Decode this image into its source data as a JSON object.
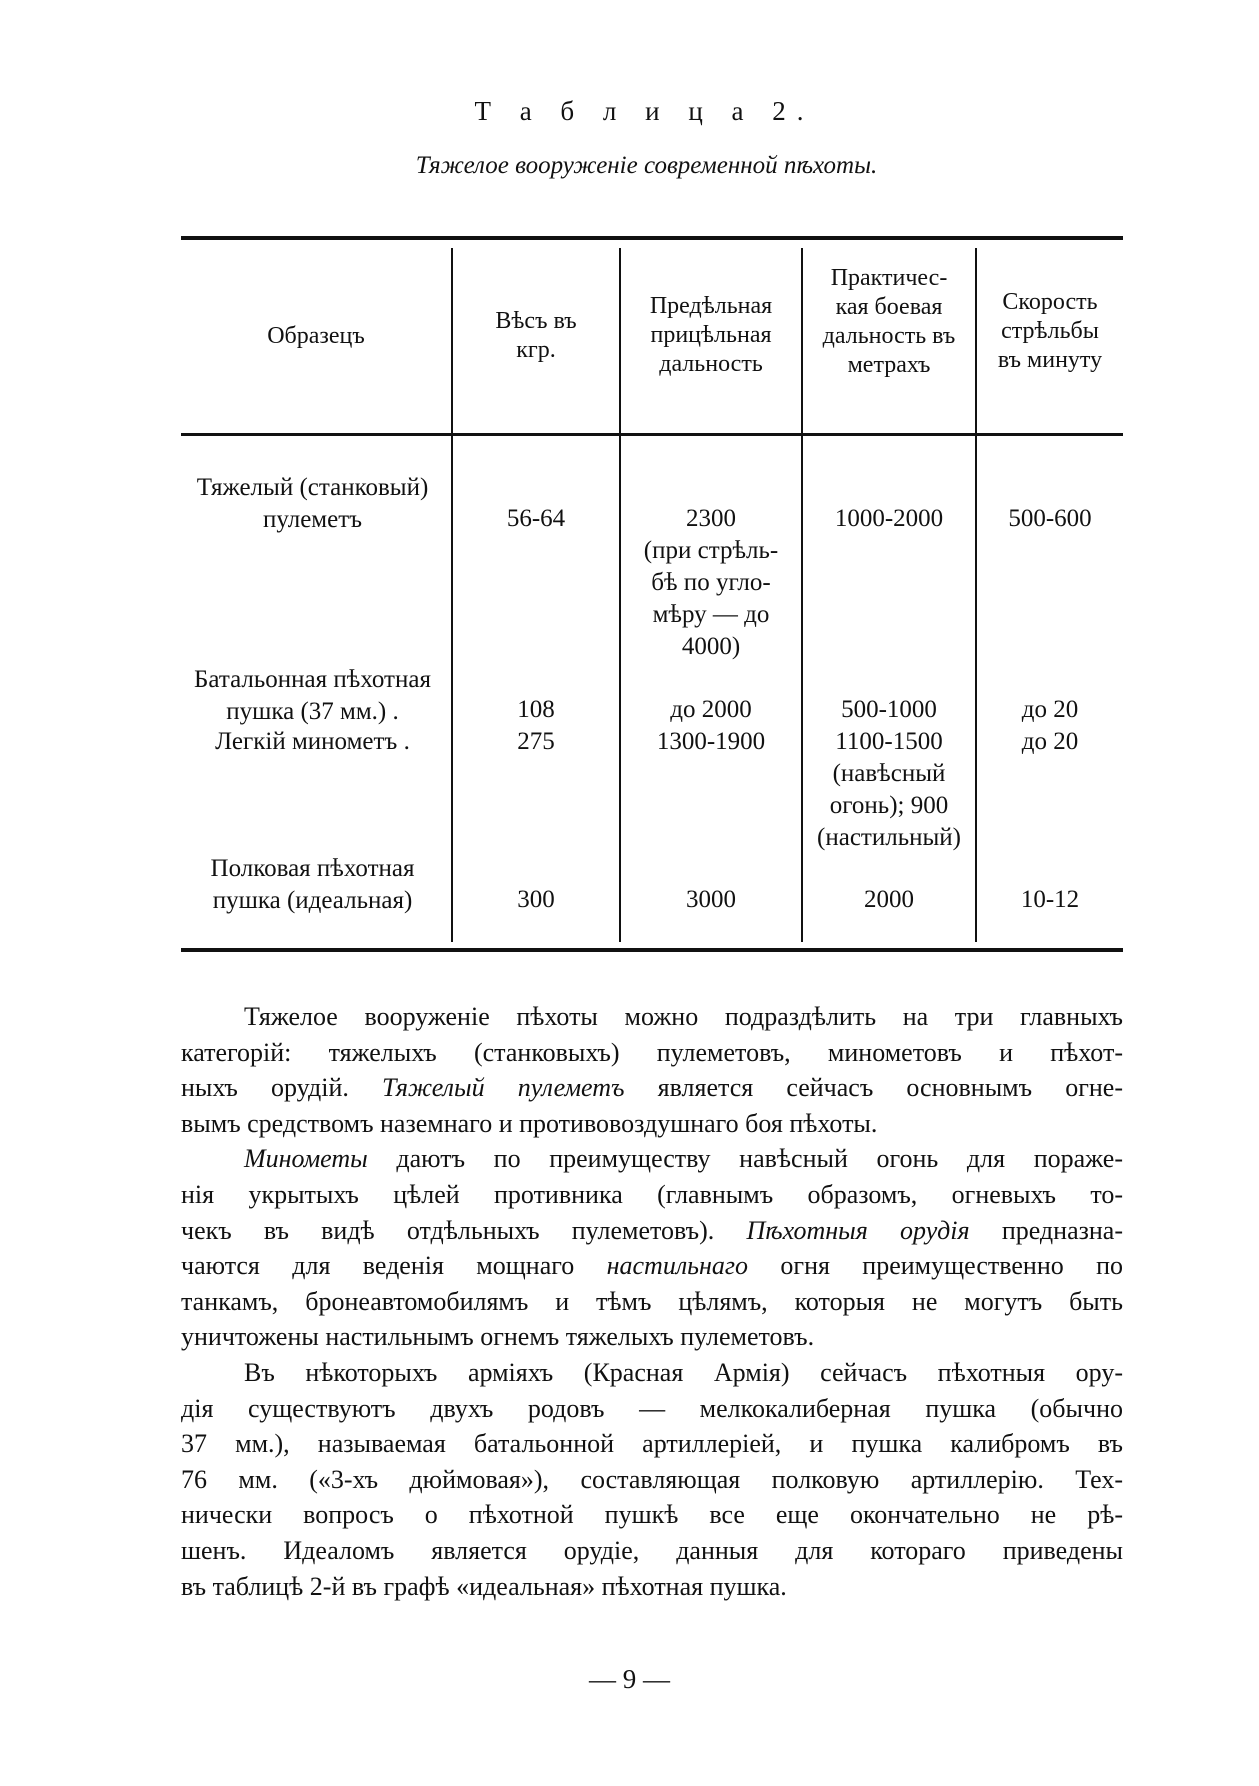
{
  "table_label": "Т а б л и ц а  2.",
  "table_caption": "Тяжелое вооруженіе современной пѣхоты.",
  "table": {
    "headers": [
      "Образецъ",
      "Вѣсъ въ\nкгр.",
      "Предѣльная\nприцѣльная\nдальность",
      "Практичес-\nкая боевая\nдальность въ\nметрахъ",
      "Скорость\nстрѣльбы\nвъ минуту"
    ],
    "rows": [
      {
        "name": "Тяжелый (станковый)\nпулеметъ",
        "weight": "56-64",
        "max_range": "2300\n(при стрѣль-\nбѣ по угло-\nмѣру — до\n4000)",
        "combat_range": "1000-2000",
        "rate": "500-600"
      },
      {
        "name": "Батальонная пѣхотная\nпушка (37 мм.) .",
        "weight": "108",
        "max_range": "до 2000",
        "combat_range": "500-1000",
        "rate": "до 20"
      },
      {
        "name": "Легкій минометъ   .",
        "weight": "275",
        "max_range": "1300-1900",
        "combat_range": "1100-1500\n(навѣсный\nогонь); 900\n(настильный)",
        "rate": "до 20"
      },
      {
        "name": "Полковая пѣхотная\nпушка (идеальная)",
        "weight": "300",
        "max_range": "3000",
        "combat_range": "2000",
        "rate": "10-12"
      }
    ]
  },
  "body_lines": [
    {
      "indent": true,
      "parts": [
        {
          "t": "Тяжелое вооруженіе пѣхоты можно подраздѣлить на три главныхъ"
        }
      ]
    },
    {
      "parts": [
        {
          "t": "категорій: тяжелыхъ (станковыхъ) пулеметовъ, минометовъ и пѣхот-"
        }
      ]
    },
    {
      "parts": [
        {
          "t": "ныхъ орудій. "
        },
        {
          "t": "Тяжелый пулеметъ",
          "i": true
        },
        {
          "t": " является сейчасъ основнымъ огне-"
        }
      ]
    },
    {
      "last": true,
      "parts": [
        {
          "t": "вымъ средствомъ наземнаго и противовоздушнаго боя пѣхоты."
        }
      ]
    },
    {
      "indent": true,
      "parts": [
        {
          "t": "Минометы",
          "i": true
        },
        {
          "t": " даютъ по преимуществу навѣсный огонь для пораже-"
        }
      ]
    },
    {
      "parts": [
        {
          "t": "нія укрытыхъ цѣлей противника (главнымъ образомъ, огневыхъ то-"
        }
      ]
    },
    {
      "parts": [
        {
          "t": "чекъ въ видѣ отдѣльныхъ пулеметовъ). "
        },
        {
          "t": "Пѣхотныя орудія",
          "i": true
        },
        {
          "t": " предназна-"
        }
      ]
    },
    {
      "parts": [
        {
          "t": "чаются для веденія мощнаго "
        },
        {
          "t": "настильнаго",
          "i": true
        },
        {
          "t": " огня преимущественно по"
        }
      ]
    },
    {
      "parts": [
        {
          "t": "танкамъ, бронеавтомобилямъ и тѣмъ цѣлямъ, которыя не могутъ быть"
        }
      ]
    },
    {
      "last": true,
      "parts": [
        {
          "t": "уничтожены настильнымъ огнемъ тяжелыхъ пулеметовъ."
        }
      ]
    },
    {
      "indent": true,
      "parts": [
        {
          "t": "Въ нѣкоторыхъ арміяхъ (Красная Армія) сейчасъ пѣхотныя ору-"
        }
      ]
    },
    {
      "parts": [
        {
          "t": "дія существуютъ двухъ родовъ — мелкокалиберная пушка (обычно"
        }
      ]
    },
    {
      "parts": [
        {
          "t": "37 мм.), называемая батальонной артиллеріей, и пушка калибромъ въ"
        }
      ]
    },
    {
      "parts": [
        {
          "t": "76 мм. («3-хъ дюймовая»), составляющая полковую артиллерію. Тех-"
        }
      ]
    },
    {
      "parts": [
        {
          "t": "нически вопросъ о пѣхотной пушкѣ все еще окончательно не рѣ-"
        }
      ]
    },
    {
      "parts": [
        {
          "t": "шенъ. Идеаломъ является орудіе, данныя для котораго приведены"
        }
      ]
    },
    {
      "last": true,
      "parts": [
        {
          "t": "въ таблицѣ 2-й въ графѣ «идеальная» пѣхотная пушка."
        }
      ]
    }
  ],
  "page_number": "— 9 —"
}
